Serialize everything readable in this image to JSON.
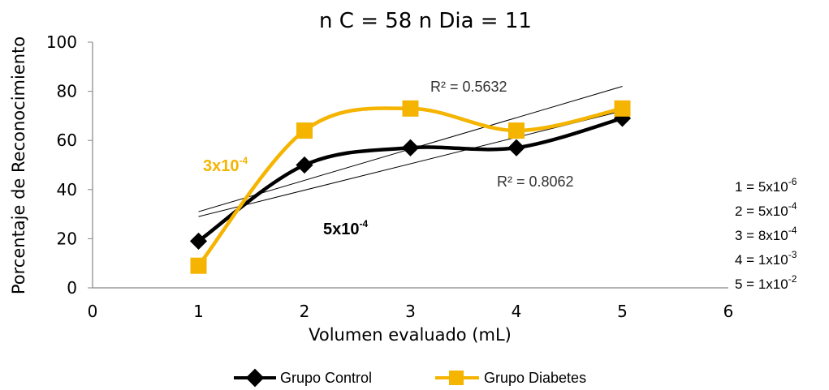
{
  "title": "n C = 58     n Dia = 11",
  "chart_data": {
    "type": "line",
    "title": "n C = 58     n Dia = 11",
    "xlabel": "Volumen evaluado (mL)",
    "ylabel": "Porcentaje de Reconocimiento",
    "xlim": [
      0,
      6
    ],
    "ylim": [
      0,
      100
    ],
    "xticks": [
      0,
      1,
      2,
      3,
      4,
      5,
      6
    ],
    "yticks": [
      0,
      20,
      40,
      60,
      80,
      100
    ],
    "grid": false,
    "legend_position": "bottom",
    "x": [
      1,
      2,
      3,
      4,
      5
    ],
    "series": [
      {
        "name": "Grupo Control",
        "values": [
          19,
          50,
          57,
          57,
          69
        ],
        "color": "#000000",
        "marker": "diamond",
        "trendline": {
          "type": "linear",
          "r2_label": "R² = 0.8062",
          "y_at_1": 29,
          "y_at_5": 72
        }
      },
      {
        "name": "Grupo Diabetes",
        "values": [
          9,
          64,
          73,
          64,
          73
        ],
        "color": "#F5B400",
        "marker": "square",
        "trendline": {
          "type": "linear",
          "r2_label": "R² = 0.5632",
          "y_at_1": 31,
          "y_at_5": 82
        }
      }
    ],
    "annotations": [
      {
        "base": "3x10",
        "exp": "-4",
        "color": "#F5B400"
      },
      {
        "base": "5x10",
        "exp": "-4",
        "color": "#000000"
      }
    ],
    "key": [
      {
        "label": "1 = 5x10",
        "exp": "-6"
      },
      {
        "label": "2 = 5x10",
        "exp": "-4"
      },
      {
        "label": "3 = 8x10",
        "exp": "-4"
      },
      {
        "label": "4 = 1x10",
        "exp": "-3"
      },
      {
        "label": "5 = 1x10",
        "exp": "-2"
      }
    ]
  }
}
